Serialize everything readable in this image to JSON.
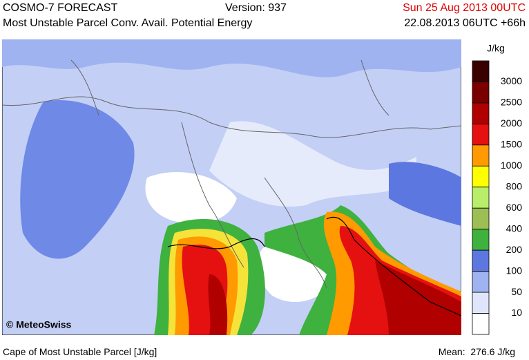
{
  "header": {
    "model": "COSMO-7 FORECAST",
    "version": "Version: 937",
    "valid_time": "Sun 25 Aug 2013 00UTC",
    "subtitle": "Most Unstable Parcel Conv. Avail. Potential Energy",
    "run": "22.08.2013 06UTC +66h"
  },
  "legend": {
    "unit": "J/kg",
    "colors": [
      "#3a0000",
      "#7a0000",
      "#b00000",
      "#e51010",
      "#ff9a00",
      "#ffff00",
      "#b8ee6a",
      "#9cbf54",
      "#3fb13f",
      "#5c78e0",
      "#9fb3f0",
      "#dfe6fb",
      "#ffffff"
    ],
    "labels": [
      "3000",
      "2500",
      "2000",
      "1500",
      "1000",
      "800",
      "600",
      "400",
      "200",
      "100",
      "50",
      "10"
    ]
  },
  "copyright": "© MeteoSwiss",
  "footer": {
    "caption": "Cape of Most Unstable Parcel [J/kg]",
    "mean_label": "Mean:",
    "mean": "276.6 J/kg"
  }
}
